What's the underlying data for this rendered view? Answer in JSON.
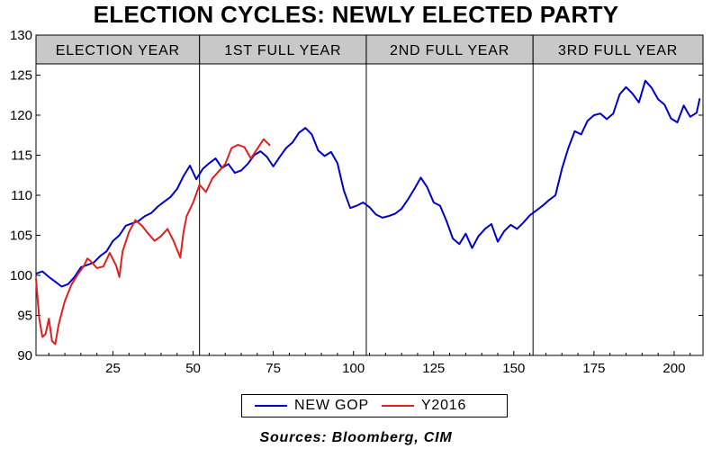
{
  "chart_data": {
    "type": "line",
    "title": "ELECTION CYCLES: NEWLY ELECTED PARTY",
    "xlabel": "",
    "ylabel": "",
    "xlim": [
      1,
      209
    ],
    "ylim": [
      90,
      130
    ],
    "x_ticks": [
      25,
      50,
      75,
      100,
      125,
      150,
      175,
      200
    ],
    "y_ticks": [
      90,
      95,
      100,
      105,
      110,
      115,
      120,
      125,
      130
    ],
    "grid": false,
    "legend_position": "bottom-center",
    "period_labels": [
      {
        "label": "ELECTION YEAR",
        "x_start": 1,
        "x_end": 52
      },
      {
        "label": "1ST FULL YEAR",
        "x_start": 52,
        "x_end": 104
      },
      {
        "label": "2ND FULL YEAR",
        "x_start": 104,
        "x_end": 156
      },
      {
        "label": "3RD FULL YEAR",
        "x_start": 156,
        "x_end": 209
      }
    ],
    "dividers": [
      52,
      104,
      156
    ],
    "series": [
      {
        "name": "NEW GOP",
        "color": "#0000cc",
        "x": [
          1,
          3,
          5,
          7,
          9,
          11,
          13,
          15,
          17,
          19,
          21,
          23,
          25,
          27,
          29,
          31,
          33,
          35,
          37,
          39,
          41,
          43,
          45,
          47,
          49,
          51,
          53,
          55,
          57,
          59,
          61,
          63,
          65,
          67,
          69,
          71,
          73,
          75,
          77,
          79,
          81,
          83,
          85,
          87,
          89,
          91,
          93,
          95,
          97,
          99,
          101,
          103,
          105,
          107,
          109,
          111,
          113,
          115,
          117,
          119,
          121,
          123,
          125,
          127,
          129,
          131,
          133,
          135,
          137,
          139,
          141,
          143,
          145,
          147,
          149,
          151,
          153,
          155,
          157,
          159,
          161,
          163,
          165,
          167,
          169,
          171,
          173,
          175,
          177,
          179,
          181,
          183,
          185,
          187,
          189,
          191,
          193,
          195,
          197,
          199,
          201,
          203,
          205,
          207,
          208
        ],
        "values": [
          100.2,
          100.5,
          99.8,
          99.2,
          98.6,
          98.9,
          99.8,
          101.0,
          101.3,
          101.6,
          102.4,
          103.0,
          104.3,
          105.0,
          106.2,
          106.5,
          106.8,
          107.4,
          107.8,
          108.6,
          109.2,
          109.8,
          110.8,
          112.4,
          113.7,
          112.0,
          113.3,
          114.0,
          114.6,
          113.4,
          113.9,
          112.8,
          113.1,
          113.9,
          115.0,
          115.5,
          114.8,
          113.6,
          114.8,
          115.9,
          116.6,
          117.8,
          118.4,
          117.6,
          115.6,
          114.9,
          115.4,
          114.0,
          110.6,
          108.4,
          108.7,
          109.1,
          108.5,
          107.6,
          107.2,
          107.4,
          107.7,
          108.3,
          109.5,
          110.8,
          112.2,
          111.0,
          109.1,
          108.7,
          106.8,
          104.6,
          103.9,
          105.2,
          103.4,
          104.9,
          105.8,
          106.4,
          104.2,
          105.5,
          106.3,
          105.8,
          106.6,
          107.5,
          108.1,
          108.7,
          109.4,
          110.0,
          113.3,
          115.9,
          118.0,
          117.6,
          119.3,
          120.0,
          120.2,
          119.5,
          120.2,
          122.6,
          123.5,
          122.7,
          121.6,
          124.3,
          123.4,
          122.0,
          121.3,
          119.6,
          119.1,
          121.2,
          119.8,
          120.3,
          122.1
        ]
      },
      {
        "name": "Y2016",
        "color": "#e02020",
        "x": [
          1,
          2,
          3,
          4,
          5,
          6,
          7,
          8,
          9,
          10,
          12,
          14,
          16,
          17,
          18,
          20,
          22,
          24,
          26,
          27,
          28,
          30,
          32,
          34,
          36,
          38,
          40,
          42,
          44,
          46,
          47,
          48,
          50,
          52,
          54,
          56,
          58,
          60,
          62,
          64,
          66,
          68,
          70,
          72,
          74
        ],
        "values": [
          99.6,
          94.6,
          92.3,
          92.7,
          94.6,
          91.8,
          91.4,
          93.7,
          95.3,
          96.8,
          98.8,
          100.1,
          101.2,
          102.1,
          101.8,
          100.9,
          101.1,
          102.8,
          101.2,
          99.8,
          103.0,
          105.4,
          106.9,
          106.2,
          105.2,
          104.3,
          104.9,
          105.8,
          104.2,
          102.2,
          105.4,
          107.4,
          109.1,
          111.3,
          110.4,
          112.1,
          113.0,
          113.9,
          115.9,
          116.3,
          116.0,
          114.6,
          115.8,
          117.0,
          116.2
        ]
      }
    ]
  },
  "source_text": "Sources:  Bloomberg, CIM"
}
